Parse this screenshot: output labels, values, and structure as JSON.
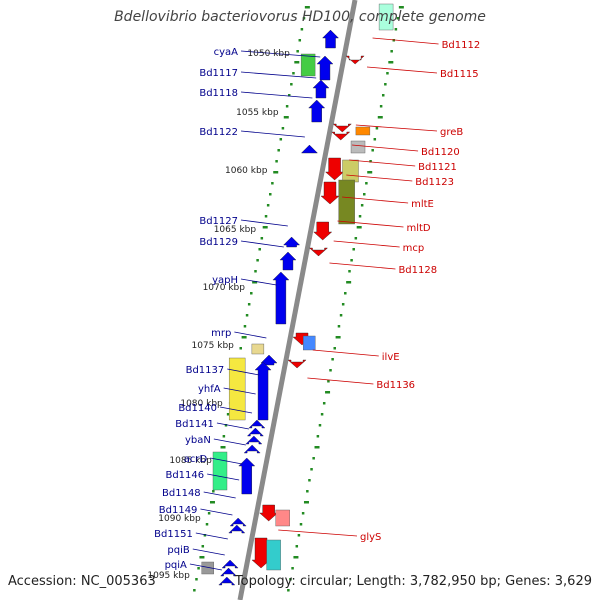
{
  "title": "Bdellovibrio bacteriovorus HD100, complete genome",
  "footer": {
    "accession": "Accession: NC_005363",
    "topology": "Topology: circular; Length: 3,782,950 bp; Genes: 3,629"
  },
  "colors": {
    "backbone": "#8a8a8a",
    "tick": "#228b22",
    "left_label": "#00008b",
    "right_label": "#cc0000",
    "kbp_label": "#222222",
    "forward_gene": "#0000ee",
    "reverse_gene": "#ee0000"
  },
  "scale_ticks": [
    "1050 kbp",
    "1055 kbp",
    "1060 kbp",
    "1065 kbp",
    "1070 kbp",
    "1075 kbp",
    "1080 kbp",
    "1085 kbp",
    "1090 kbp",
    "1095 kbp"
  ],
  "left_labels": [
    "cyaA",
    "Bd1117",
    "Bd1118",
    "Bd1122",
    "Bd1127",
    "Bd1129",
    "yapH",
    "mrp",
    "Bd1137",
    "yhfA",
    "Bd1140",
    "Bd1141",
    "ybaN",
    "acrD",
    "Bd1146",
    "Bd1148",
    "Bd1149",
    "Bd1151",
    "pqiB",
    "pqiA"
  ],
  "right_labels": [
    "Bd1112",
    "Bd1115",
    "greB",
    "Bd1120",
    "Bd1121",
    "Bd1123",
    "mltE",
    "mltD",
    "mcp",
    "Bd1128",
    "ilvE",
    "Bd1136",
    "glyS"
  ]
}
